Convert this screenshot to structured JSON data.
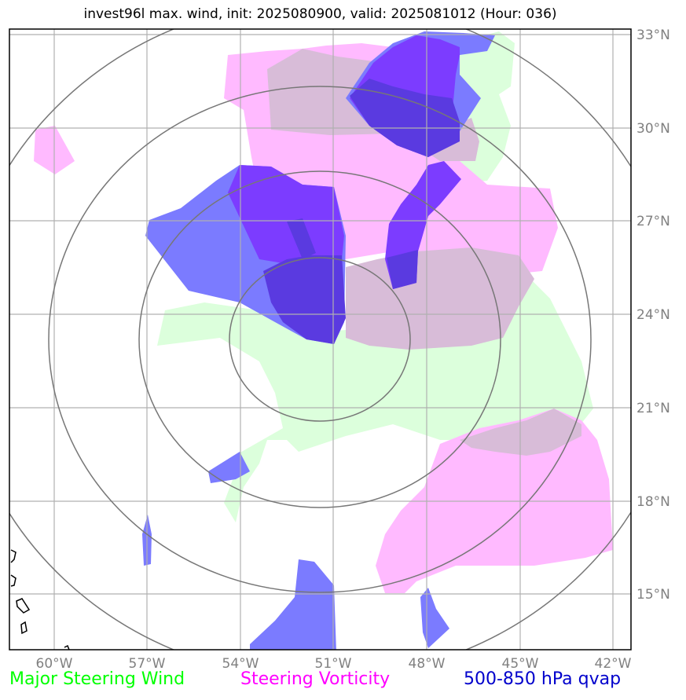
{
  "title": "invest96l max. wind, init: 2025080900, valid: 2025081012 (Hour: 036)",
  "lon_ticks": [
    "60°W",
    "57°W",
    "54°W",
    "51°W",
    "48°W",
    "45°W",
    "42°W"
  ],
  "lat_ticks": [
    "33°N",
    "30°N",
    "27°N",
    "24°N",
    "21°N",
    "18°N",
    "15°N"
  ],
  "legend": {
    "wind": {
      "label": "Major Steering Wind",
      "color": "#00ff00"
    },
    "vort": {
      "label": "Steering Vorticity",
      "color": "#ff00ff"
    },
    "qvap": {
      "label": "500-850 hPa qvap",
      "color": "#0000cc"
    }
  },
  "colors": {
    "wind_fill": "#ccffcc",
    "vort_fill": "#ff66ff",
    "qvap_fill": "#0000ee",
    "qvap_dark": "#6600ff",
    "overlap": "#d8b8d8",
    "grid": "#b0b0b0",
    "rings": "#777777",
    "coast": "#000000"
  }
}
